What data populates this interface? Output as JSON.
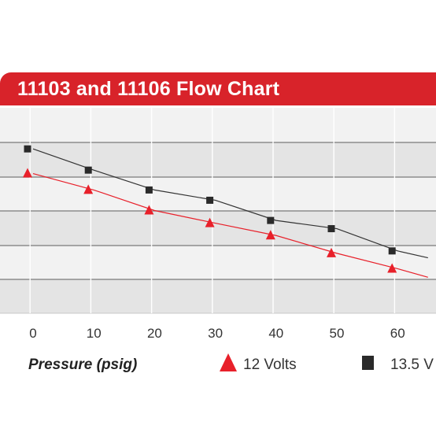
{
  "colors": {
    "header": "#d8232a",
    "band_dark": "#e4e4e4",
    "band_light": "#f2f2f2",
    "grid": "#8c8c8c",
    "series_12v": "#e8202a",
    "series_13v": "#2a2a2a",
    "line_12v": "#e8202a",
    "line_13v": "#333333"
  },
  "chart_data": {
    "type": "line",
    "title": "11103 and 11106 Flow Chart",
    "xlabel": "Pressure (psig)",
    "ylabel": "",
    "x_ticks": [
      "0",
      "10",
      "20",
      "30",
      "40",
      "50",
      "60"
    ],
    "xlim": [
      -4,
      65
    ],
    "ylim": [
      0,
      6
    ],
    "grid": true,
    "legend_placement": "bottom",
    "series": [
      {
        "name": "12 Volts",
        "marker": "triangle",
        "x": [
          0,
          10,
          20,
          30,
          40,
          50,
          60,
          65
        ],
        "y": [
          4.08,
          3.6,
          3.0,
          2.63,
          2.27,
          1.75,
          1.3,
          1.05
        ]
      },
      {
        "name": "13.5 V",
        "marker": "square",
        "x": [
          0,
          10,
          20,
          30,
          40,
          50,
          60,
          65
        ],
        "y": [
          4.8,
          4.18,
          3.6,
          3.3,
          2.71,
          2.47,
          1.82,
          1.62
        ]
      }
    ]
  }
}
